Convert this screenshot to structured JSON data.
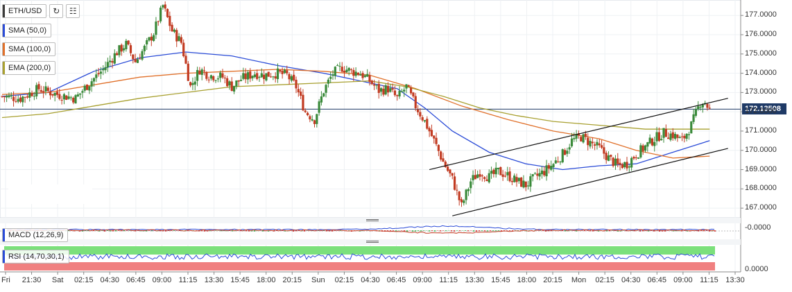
{
  "toolbar": {
    "symbol": "ETH/USD",
    "indicators": [
      {
        "label": "SMA (50,0)",
        "color": "#2a4bd7"
      },
      {
        "label": "SMA (100,0)",
        "color": "#e0702a"
      },
      {
        "label": "EMA (200,0)",
        "color": "#a8a030"
      }
    ],
    "reload_icon": "refresh-icon",
    "bars_icon": "bar-chart-icon"
  },
  "panels": {
    "macd_label": "MACD (12,26,9)",
    "macd_value": "-0.0000",
    "rsi_label": "RSI (14,70,30,1)",
    "rsi_value": "0.0000"
  },
  "last_price_label": "172.13508",
  "chart_data": {
    "type": "candlestick",
    "symbol": "ETH/USD",
    "ylim": [
      166.5,
      177.8
    ],
    "y_ticks": [
      "177.0000",
      "176.0000",
      "175.0000",
      "174.0000",
      "173.0000",
      "172.0000",
      "171.0000",
      "170.0000",
      "169.0000",
      "168.0000",
      "167.0000"
    ],
    "x_ticks": [
      "Fri",
      "21:30",
      "Sat",
      "02:15",
      "04:30",
      "06:45",
      "09:00",
      "11:15",
      "13:30",
      "15:45",
      "18:00",
      "20:15",
      "Sun",
      "02:15",
      "04:30",
      "06:45",
      "09:00",
      "11:15",
      "13:30",
      "15:45",
      "18:00",
      "20:15",
      "Mon",
      "02:15",
      "04:30",
      "06:45",
      "09:00",
      "11:15",
      "13:30"
    ],
    "last_price": 172.13508,
    "close_path": [
      [
        0,
        172.8
      ],
      [
        4,
        172.7
      ],
      [
        8,
        173.2
      ],
      [
        12,
        172.9
      ],
      [
        16,
        172.7
      ],
      [
        19,
        173.5
      ],
      [
        22,
        174.2
      ],
      [
        25,
        175.1
      ],
      [
        27,
        175.5
      ],
      [
        29,
        174.6
      ],
      [
        31,
        175.3
      ],
      [
        33,
        176.1
      ],
      [
        35,
        177.5
      ],
      [
        37,
        176.2
      ],
      [
        39,
        175.6
      ],
      [
        41,
        173.3
      ],
      [
        43,
        174.2
      ],
      [
        45,
        173.9
      ],
      [
        48,
        173.8
      ],
      [
        50,
        173.3
      ],
      [
        52,
        173.7
      ],
      [
        55,
        174.0
      ],
      [
        57,
        173.9
      ],
      [
        60,
        174.0
      ],
      [
        62,
        173.9
      ],
      [
        64,
        173.3
      ],
      [
        66,
        172.0
      ],
      [
        68,
        171.6
      ],
      [
        70,
        173.1
      ],
      [
        72,
        174.0
      ],
      [
        74,
        174.3
      ],
      [
        76,
        174.1
      ],
      [
        78,
        174.0
      ],
      [
        80,
        173.6
      ],
      [
        82,
        173.1
      ],
      [
        84,
        173.2
      ],
      [
        86,
        172.7
      ],
      [
        88,
        173.3
      ],
      [
        90,
        172.3
      ],
      [
        92,
        171.5
      ],
      [
        94,
        170.5
      ],
      [
        96,
        169.4
      ],
      [
        98,
        168.5
      ],
      [
        100,
        167.1
      ],
      [
        102,
        168.4
      ],
      [
        104,
        168.9
      ],
      [
        106,
        168.6
      ],
      [
        108,
        168.9
      ],
      [
        110,
        168.7
      ],
      [
        112,
        168.4
      ],
      [
        114,
        168.2
      ],
      [
        116,
        168.6
      ],
      [
        118,
        168.9
      ],
      [
        120,
        169.3
      ],
      [
        122,
        169.8
      ],
      [
        124,
        170.5
      ],
      [
        126,
        170.7
      ],
      [
        128,
        170.4
      ],
      [
        130,
        170.1
      ],
      [
        132,
        169.6
      ],
      [
        134,
        169.2
      ],
      [
        136,
        169.3
      ],
      [
        138,
        169.8
      ],
      [
        140,
        170.2
      ],
      [
        142,
        170.6
      ],
      [
        144,
        170.9
      ],
      [
        146,
        170.8
      ],
      [
        148,
        170.5
      ],
      [
        150,
        171.3
      ],
      [
        152,
        172.5
      ],
      [
        153,
        172.5
      ],
      [
        154,
        172.1
      ]
    ],
    "series": [
      {
        "name": "SMA (50,0)",
        "color": "#2a4bd7",
        "values": [
          [
            0,
            172.8
          ],
          [
            10,
            173.0
          ],
          [
            20,
            174.1
          ],
          [
            30,
            174.8
          ],
          [
            40,
            175.1
          ],
          [
            50,
            174.9
          ],
          [
            60,
            174.4
          ],
          [
            70,
            174.0
          ],
          [
            78,
            173.6
          ],
          [
            86,
            173.2
          ],
          [
            92,
            172.2
          ],
          [
            98,
            171.0
          ],
          [
            106,
            169.9
          ],
          [
            114,
            169.3
          ],
          [
            122,
            169.0
          ],
          [
            130,
            169.2
          ],
          [
            138,
            169.3
          ],
          [
            146,
            169.9
          ],
          [
            154,
            170.5
          ]
        ]
      },
      {
        "name": "SMA (100,0)",
        "color": "#e0702a",
        "values": [
          [
            0,
            172.9
          ],
          [
            10,
            173.0
          ],
          [
            20,
            173.4
          ],
          [
            30,
            173.8
          ],
          [
            40,
            174.0
          ],
          [
            50,
            174.1
          ],
          [
            60,
            174.2
          ],
          [
            70,
            174.1
          ],
          [
            80,
            173.9
          ],
          [
            90,
            173.2
          ],
          [
            100,
            172.3
          ],
          [
            110,
            171.6
          ],
          [
            120,
            171.0
          ],
          [
            130,
            170.6
          ],
          [
            138,
            170.0
          ],
          [
            146,
            169.6
          ],
          [
            154,
            169.7
          ]
        ]
      },
      {
        "name": "EMA (200,0)",
        "color": "#a8a030",
        "values": [
          [
            0,
            171.7
          ],
          [
            10,
            171.9
          ],
          [
            20,
            172.3
          ],
          [
            30,
            172.7
          ],
          [
            40,
            173.0
          ],
          [
            50,
            173.3
          ],
          [
            60,
            173.4
          ],
          [
            70,
            173.5
          ],
          [
            80,
            173.6
          ],
          [
            88,
            173.3
          ],
          [
            96,
            172.8
          ],
          [
            104,
            172.2
          ],
          [
            112,
            171.8
          ],
          [
            120,
            171.5
          ],
          [
            130,
            171.3
          ],
          [
            140,
            171.1
          ],
          [
            148,
            171.1
          ],
          [
            154,
            171.1
          ]
        ]
      }
    ],
    "trendlines": [
      {
        "from": [
          93,
          169.0
        ],
        "to": [
          158,
          172.7
        ]
      },
      {
        "from": [
          98,
          166.6
        ],
        "to": [
          158,
          170.1
        ]
      }
    ]
  }
}
